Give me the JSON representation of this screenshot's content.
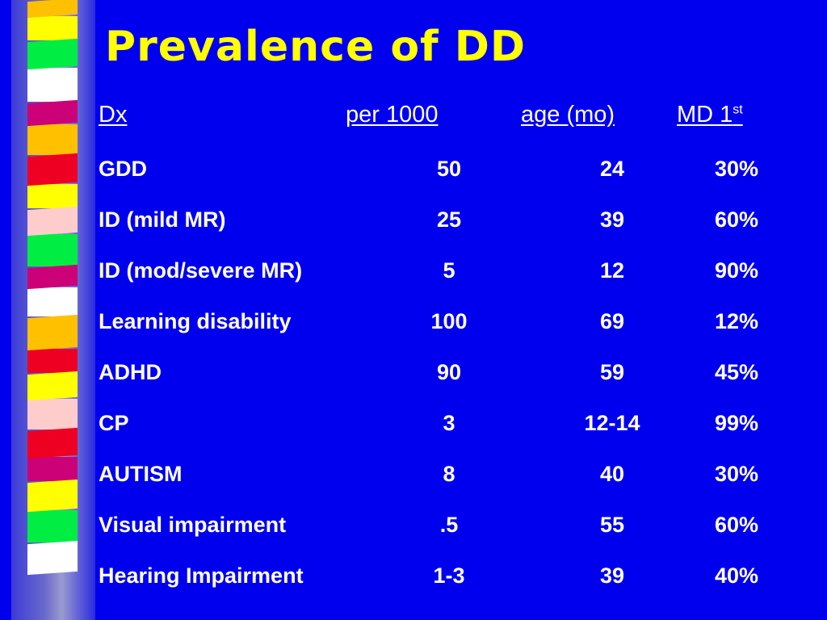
{
  "slide": {
    "title": "Prevalence of DD",
    "headers": {
      "dx": "Dx",
      "per1000": "per 1000",
      "age": "age (mo)",
      "md": "MD 1",
      "md_sup": "st"
    },
    "rows": [
      {
        "dx": "GDD",
        "per1000": "50",
        "age": "24",
        "md": "30%"
      },
      {
        "dx": "ID (mild MR)",
        "per1000": "25",
        "age": "39",
        "md": "60%"
      },
      {
        "dx": "ID (mod/severe MR)",
        "per1000": "5",
        "age": "12",
        "md": "90%"
      },
      {
        "dx": "Learning disability",
        "per1000": "100",
        "age": "69",
        "md": "12%"
      },
      {
        "dx": "ADHD",
        "per1000": "90",
        "age": "59",
        "md": "45%"
      },
      {
        "dx": "CP",
        "per1000": "3",
        "age": "12-14",
        "md": "99%"
      },
      {
        "dx": "AUTISM",
        "per1000": "8",
        "age": "40",
        "md": "30%"
      },
      {
        "dx": "Visual impairment",
        "per1000": ".5",
        "age": "55",
        "md": "60%"
      },
      {
        "dx": "Hearing Impairment",
        "per1000": "1-3",
        "age": "39",
        "md": "40%"
      }
    ]
  },
  "theme": {
    "background": "#0000ee",
    "title_color": "#ffff00",
    "text_color": "#ffffff",
    "ribbon_colors": [
      "#ffc000",
      "#ffff00",
      "#00ee44",
      "#ffffff",
      "#cc0077",
      "#ffc000",
      "#ee0022",
      "#ffff00",
      "#ffcccc",
      "#00ee44",
      "#cc0077",
      "#ffffff",
      "#ffc000",
      "#ee0022",
      "#ffff00",
      "#ffcccc",
      "#ee0022",
      "#cc0077",
      "#ffff00",
      "#00ee44",
      "#ffffff"
    ]
  }
}
